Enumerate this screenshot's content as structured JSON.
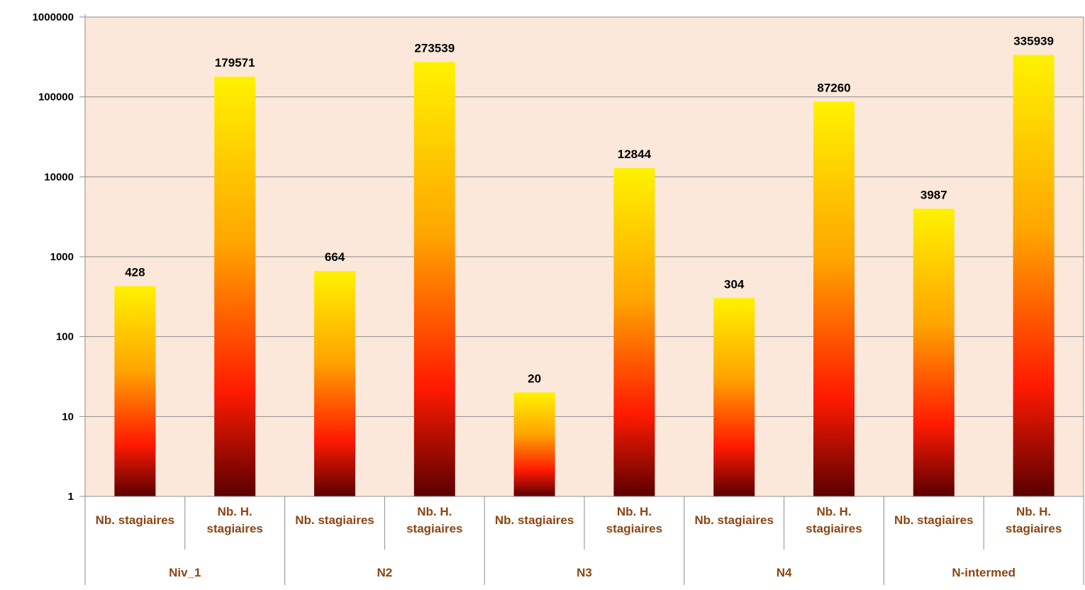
{
  "colors": {
    "plot_background": "#fce8da",
    "gridline": "#8c8c8c",
    "axis_label_text": "#000000",
    "category_label_text": "#8b4513",
    "bar_gradient": [
      "#fff200",
      "#ffa500",
      "#ff1a00",
      "#5a0000"
    ]
  },
  "chart_data": {
    "type": "bar",
    "yscale": "log",
    "ylim": [
      1,
      1000000
    ],
    "yticks": [
      "1",
      "10",
      "100",
      "1000",
      "10000",
      "100000",
      "1000000"
    ],
    "grid": true,
    "legend": "none",
    "groups": [
      {
        "label": "Niv_1",
        "bars": [
          {
            "label": "Nb. stagiaires",
            "value": 428,
            "value_label": "428"
          },
          {
            "label": "Nb. H. stagiaires",
            "value": 179571,
            "value_label": "179571"
          }
        ]
      },
      {
        "label": "N2",
        "bars": [
          {
            "label": "Nb. stagiaires",
            "value": 664,
            "value_label": "664"
          },
          {
            "label": "Nb. H. stagiaires",
            "value": 273539,
            "value_label": "273539"
          }
        ]
      },
      {
        "label": "N3",
        "bars": [
          {
            "label": "Nb. stagiaires",
            "value": 20,
            "value_label": "20"
          },
          {
            "label": "Nb. H. stagiaires",
            "value": 12844,
            "value_label": "12844"
          }
        ]
      },
      {
        "label": "N4",
        "bars": [
          {
            "label": "Nb. stagiaires",
            "value": 304,
            "value_label": "304"
          },
          {
            "label": "Nb. H. stagiaires",
            "value": 87260,
            "value_label": "87260"
          }
        ]
      },
      {
        "label": "N-intermed",
        "bars": [
          {
            "label": "Nb. stagiaires",
            "value": 3987,
            "value_label": "3987"
          },
          {
            "label": "Nb. H. stagiaires",
            "value": 335939,
            "value_label": "335939"
          }
        ]
      }
    ]
  }
}
